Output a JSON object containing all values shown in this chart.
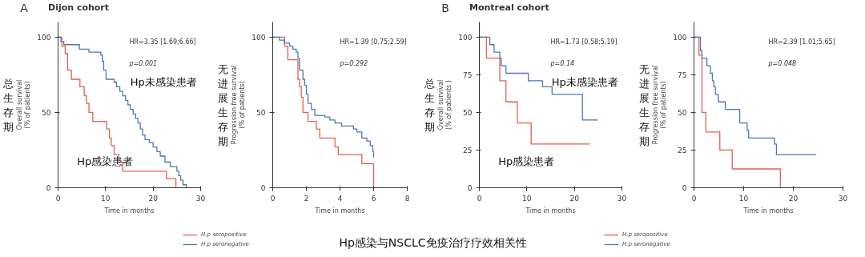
{
  "chart_data": [
    {
      "type": "step",
      "title": "Dijon cohort",
      "xlabel": "Time in months",
      "ylabel": "Overall survival\n(% of patients)",
      "xlim": [
        0,
        30
      ],
      "ylim": [
        0,
        110
      ],
      "xticks": [
        0,
        10,
        20,
        30
      ],
      "yticks": [
        0,
        50,
        100
      ],
      "grid": false,
      "legend": "bottom right",
      "line_style": "solid",
      "annotations": [
        "A",
        "HR=3.35 [1.69;6.66]",
        "p=0.001",
        "总生存期",
        "Hp未感染患者",
        "Hp感染患者"
      ],
      "series": [
        {
          "name": "H.p seropositive",
          "color": "#e0604f",
          "x": [
            0,
            0.8,
            1.5,
            2.0,
            2.8,
            4.6,
            5.5,
            6.0,
            6.5,
            7.3,
            10.2,
            10.8,
            11.2,
            11.8,
            12.8,
            13.6,
            22.8,
            24.8
          ],
          "values": [
            100,
            94,
            89,
            78,
            72,
            67,
            61,
            56,
            50,
            44,
            39,
            33,
            28,
            22,
            17,
            11,
            6,
            0
          ]
        },
        {
          "name": "H.p seronegative",
          "color": "#4a78b5",
          "x": [
            0,
            0.6,
            1.2,
            4.5,
            6.5,
            9.0,
            9.3,
            9.6,
            10.1,
            11.8,
            12.3,
            13.0,
            13.6,
            14.2,
            14.7,
            15.2,
            15.8,
            16.3,
            16.8,
            17.3,
            17.8,
            18.3,
            19.2,
            20.0,
            20.8,
            21.5,
            22.5,
            23.6,
            25.0,
            25.4,
            25.8,
            26.3,
            27.0
          ],
          "values": [
            100,
            97,
            95,
            92,
            90,
            88,
            84,
            78,
            72,
            70,
            67,
            64,
            61,
            58,
            55,
            52,
            49,
            46,
            43,
            39,
            35,
            32,
            30,
            27,
            24,
            21,
            17,
            14,
            11,
            8,
            5,
            2,
            0
          ]
        }
      ]
    },
    {
      "type": "step",
      "xlabel": "Time in months",
      "ylabel": "Progression free survival\n(% of patients)",
      "xlim": [
        0,
        8
      ],
      "ylim": [
        0,
        110
      ],
      "xticks": [
        0,
        2,
        4,
        6,
        8
      ],
      "yticks": [
        0,
        50,
        100
      ],
      "grid": false,
      "line_style": "solid",
      "annotations": [
        "HR=1.39 [0.75;2.59]",
        "p=0.292",
        "无进展生存期",
        "Hp感染与NSCLC免疫治疗疗效相关性"
      ],
      "series": [
        {
          "color": "#e0604f",
          "x": [
            0,
            0.7,
            0.9,
            1.5,
            1.6,
            1.7,
            1.8,
            2.1,
            2.6,
            2.8,
            3.7,
            3.9,
            5.3,
            6.0
          ],
          "values": [
            100,
            94,
            85,
            72,
            67,
            60,
            50,
            44,
            39,
            33,
            27,
            22,
            16,
            0
          ]
        },
        {
          "color": "#4a78b5",
          "x": [
            0,
            0.4,
            0.7,
            1.0,
            1.2,
            1.4,
            1.5,
            1.6,
            1.8,
            1.9,
            2.0,
            2.1,
            2.3,
            2.5,
            3.1,
            3.4,
            3.7,
            4.1,
            4.8,
            5.0,
            5.3,
            5.6,
            5.8,
            5.95,
            6.0
          ],
          "values": [
            100,
            98,
            96,
            94,
            92,
            90,
            86,
            78,
            72,
            68,
            62,
            56,
            52,
            48,
            47,
            45,
            43,
            41,
            39,
            37,
            33,
            31,
            28,
            24,
            20
          ]
        }
      ]
    },
    {
      "type": "step",
      "title": "Montreal cohort",
      "xlabel": "Time in months",
      "ylabel": "Overall survival\n(% of patients )",
      "xlim": [
        0,
        30
      ],
      "ylim": [
        0,
        110
      ],
      "xticks": [
        0,
        10,
        20,
        30
      ],
      "yticks": [
        0,
        25,
        50,
        75,
        100
      ],
      "grid": false,
      "legend": "bottom right",
      "line_style": "solid",
      "annotations": [
        "B",
        "HR=1.73 [0.58;5.19]",
        "p=0.14",
        "总生存期",
        "Hp未感染患者",
        "Hp感染患者"
      ],
      "series": [
        {
          "name": "H.p seropositive",
          "color": "#e0604f",
          "x": [
            0,
            1.5,
            4.3,
            5.6,
            8.0,
            10.9,
            23.3
          ],
          "values": [
            100,
            86,
            71,
            57,
            43,
            29,
            29
          ]
        },
        {
          "name": "H.p seronegative",
          "color": "#4a78b5",
          "x": [
            0,
            2.2,
            3.1,
            4.3,
            4.6,
            5.6,
            10.3,
            13.3,
            15.3,
            21.7,
            24.9
          ],
          "values": [
            100,
            95,
            90,
            86,
            81,
            76,
            71,
            67,
            62,
            45,
            45
          ]
        }
      ]
    },
    {
      "type": "step",
      "xlabel": "Time in months",
      "ylabel": "Progression free survival\n(% of patients)",
      "xlim": [
        0,
        30
      ],
      "ylim": [
        0,
        110
      ],
      "xticks": [
        0,
        10,
        20,
        30
      ],
      "yticks": [
        0,
        25,
        50,
        75,
        100
      ],
      "grid": false,
      "line_style": "solid",
      "annotations": [
        "HR=2.39 [1.01;5.65]",
        "p=0.048",
        "无进展生存期"
      ],
      "series": [
        {
          "color": "#e0604f",
          "x": [
            0,
            1.0,
            1.6,
            2.4,
            5.2,
            7.7,
            17.4
          ],
          "values": [
            100,
            88,
            50,
            37,
            25,
            12.5,
            0
          ]
        },
        {
          "color": "#4a78b5",
          "x": [
            0,
            1.3,
            1.6,
            2.6,
            3.3,
            3.7,
            4.0,
            4.3,
            4.9,
            6.3,
            9.2,
            10.7,
            11.0,
            16.2,
            16.6,
            24.6
          ],
          "values": [
            100,
            91,
            86,
            81,
            76,
            71,
            67,
            62,
            57,
            52,
            43,
            38,
            33,
            29,
            22,
            22
          ]
        }
      ]
    }
  ]
}
